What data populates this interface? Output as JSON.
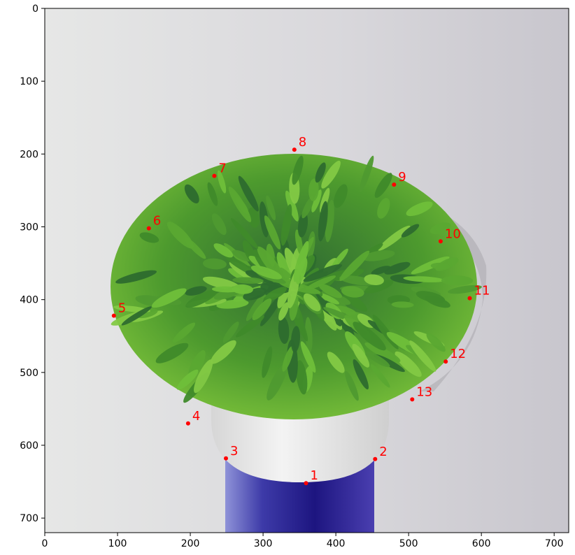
{
  "chart_data": {
    "type": "scatter",
    "title": "",
    "xlabel": "",
    "ylabel": "",
    "xlim": [
      0,
      720
    ],
    "ylim": [
      720,
      0
    ],
    "y_inverted": true,
    "grid": false,
    "background": "image of a potted green succulent-like plant in a white cup on a blue can, against a light gray wall",
    "x_ticks": [
      0,
      100,
      200,
      300,
      400,
      500,
      600,
      700
    ],
    "y_ticks": [
      0,
      100,
      200,
      300,
      400,
      500,
      600,
      700
    ],
    "marker_color": "#ff0000",
    "label_color": "#ff0000",
    "points": [
      {
        "label": "1",
        "x": 359,
        "y": 652
      },
      {
        "label": "2",
        "x": 454,
        "y": 619
      },
      {
        "label": "3",
        "x": 249,
        "y": 618
      },
      {
        "label": "4",
        "x": 197,
        "y": 570
      },
      {
        "label": "5",
        "x": 95,
        "y": 422
      },
      {
        "label": "6",
        "x": 143,
        "y": 302
      },
      {
        "label": "7",
        "x": 233,
        "y": 230
      },
      {
        "label": "8",
        "x": 343,
        "y": 194
      },
      {
        "label": "9",
        "x": 480,
        "y": 242
      },
      {
        "label": "10",
        "x": 544,
        "y": 320
      },
      {
        "label": "11",
        "x": 584,
        "y": 398
      },
      {
        "label": "12",
        "x": 551,
        "y": 485
      },
      {
        "label": "13",
        "x": 505,
        "y": 537
      }
    ]
  }
}
